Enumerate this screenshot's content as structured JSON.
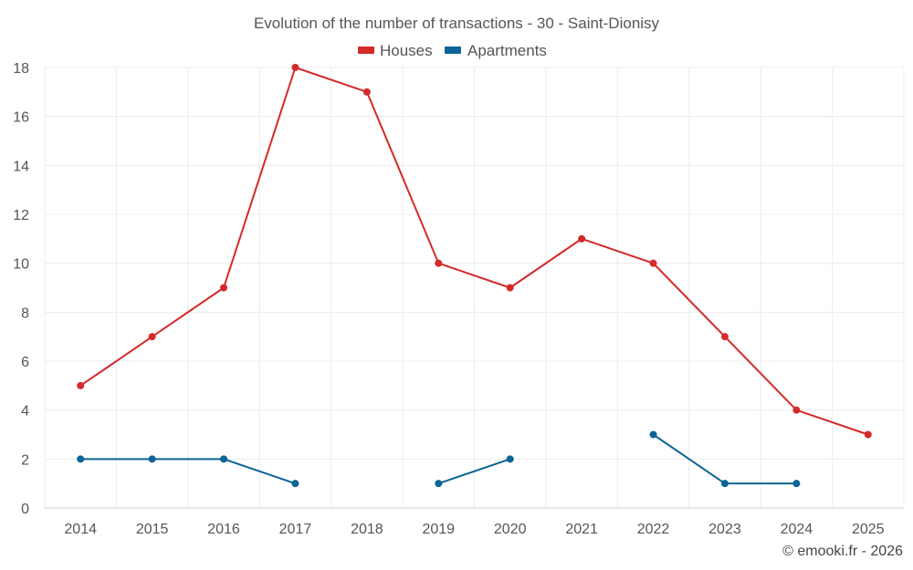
{
  "chart_data": {
    "type": "line",
    "title": "Evolution of the number of transactions - 30 - Saint-Dionisy",
    "xlabel": "",
    "ylabel": "",
    "categories": [
      "2014",
      "2015",
      "2016",
      "2017",
      "2018",
      "2019",
      "2020",
      "2021",
      "2022",
      "2023",
      "2024",
      "2025"
    ],
    "ylim": [
      0,
      18
    ],
    "yticks": [
      "0",
      "2",
      "4",
      "6",
      "8",
      "10",
      "12",
      "14",
      "16",
      "18"
    ],
    "grid": true,
    "legend_position": "top-center",
    "series": [
      {
        "name": "Houses",
        "color": "#d32a2a",
        "values": [
          5,
          7,
          9,
          18,
          17,
          10,
          9,
          11,
          10,
          7,
          4,
          3
        ]
      },
      {
        "name": "Apartments",
        "color": "#0b6496",
        "values": [
          2,
          2,
          2,
          1,
          null,
          1,
          2,
          null,
          3,
          1,
          1,
          null
        ]
      }
    ]
  },
  "credit": "© emooki.fr - 2026"
}
